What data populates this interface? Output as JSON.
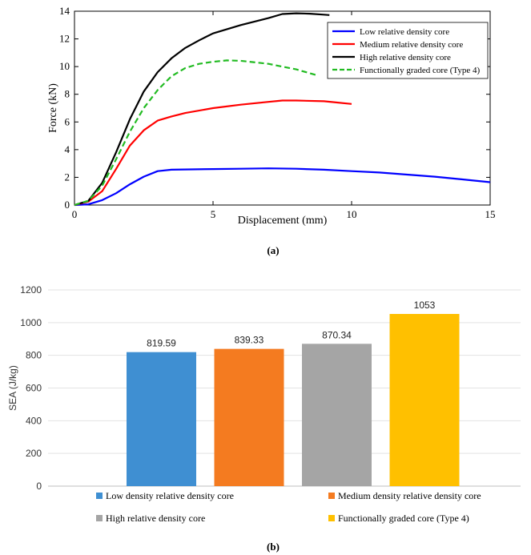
{
  "chart_data": [
    {
      "type": "line",
      "title": "",
      "xlabel": "Displacement (mm)",
      "ylabel": "Force (kN)",
      "xlim": [
        0,
        15
      ],
      "ylim": [
        0,
        14
      ],
      "xticks": [
        "0",
        "5",
        "10",
        "15"
      ],
      "yticks": [
        "0",
        "2",
        "4",
        "6",
        "8",
        "10",
        "12",
        "14"
      ],
      "legend_position": "top-right",
      "caption": "(a)",
      "series": [
        {
          "name": "Low relative density core",
          "color": "#0000ff",
          "dash": false,
          "points": [
            [
              0,
              0
            ],
            [
              0.5,
              0.05
            ],
            [
              1.0,
              0.35
            ],
            [
              1.5,
              0.85
            ],
            [
              2.0,
              1.5
            ],
            [
              2.5,
              2.05
            ],
            [
              3.0,
              2.45
            ],
            [
              3.5,
              2.55
            ],
            [
              5,
              2.6
            ],
            [
              6,
              2.62
            ],
            [
              7,
              2.65
            ],
            [
              8,
              2.62
            ],
            [
              9,
              2.55
            ],
            [
              10,
              2.45
            ],
            [
              11,
              2.35
            ],
            [
              12,
              2.2
            ],
            [
              13,
              2.05
            ],
            [
              14,
              1.85
            ],
            [
              15,
              1.65
            ]
          ]
        },
        {
          "name": "Medium relative density core",
          "color": "#ff0000",
          "dash": false,
          "points": [
            [
              0,
              0
            ],
            [
              0.5,
              0.25
            ],
            [
              1.0,
              1.0
            ],
            [
              1.5,
              2.6
            ],
            [
              2.0,
              4.3
            ],
            [
              2.5,
              5.4
            ],
            [
              3.0,
              6.1
            ],
            [
              3.5,
              6.4
            ],
            [
              4.0,
              6.65
            ],
            [
              5.0,
              7.0
            ],
            [
              6.0,
              7.25
            ],
            [
              7.0,
              7.45
            ],
            [
              7.5,
              7.55
            ],
            [
              8.0,
              7.55
            ],
            [
              9.0,
              7.5
            ],
            [
              10.0,
              7.3
            ]
          ]
        },
        {
          "name": "High relative density core",
          "color": "#000000",
          "dash": false,
          "points": [
            [
              0,
              0
            ],
            [
              0.5,
              0.3
            ],
            [
              1.0,
              1.6
            ],
            [
              1.5,
              3.8
            ],
            [
              2.0,
              6.2
            ],
            [
              2.5,
              8.2
            ],
            [
              3.0,
              9.6
            ],
            [
              3.5,
              10.6
            ],
            [
              4.0,
              11.35
            ],
            [
              4.5,
              11.9
            ],
            [
              5.0,
              12.4
            ],
            [
              6.0,
              13.0
            ],
            [
              7.0,
              13.5
            ],
            [
              7.5,
              13.8
            ],
            [
              8.0,
              13.85
            ],
            [
              8.5,
              13.82
            ],
            [
              9.0,
              13.75
            ],
            [
              9.2,
              13.72
            ]
          ]
        },
        {
          "name": "Functionally graded core (Type 4)",
          "color": "#22bb22",
          "dash": true,
          "points": [
            [
              0,
              0
            ],
            [
              0.5,
              0.3
            ],
            [
              1.0,
              1.4
            ],
            [
              1.5,
              3.3
            ],
            [
              2.0,
              5.3
            ],
            [
              2.5,
              7.0
            ],
            [
              3.0,
              8.3
            ],
            [
              3.5,
              9.3
            ],
            [
              4.0,
              9.9
            ],
            [
              4.5,
              10.2
            ],
            [
              5.0,
              10.35
            ],
            [
              5.5,
              10.45
            ],
            [
              6.0,
              10.42
            ],
            [
              7.0,
              10.2
            ],
            [
              8.0,
              9.8
            ],
            [
              8.7,
              9.4
            ]
          ]
        }
      ]
    },
    {
      "type": "bar",
      "title": "",
      "xlabel": "",
      "ylabel": "SEA (J/kg)",
      "ylim": [
        0,
        1200
      ],
      "yticks": [
        "0",
        "200",
        "400",
        "600",
        "800",
        "1000",
        "1200"
      ],
      "legend_position": "bottom",
      "caption": "(b)",
      "series": [
        {
          "name": "Low density relative density core",
          "value": 819.59,
          "label": "819.59",
          "color": "#3f8fd2"
        },
        {
          "name": "Medium density relative density core",
          "value": 839.33,
          "label": "839.33",
          "color": "#f47b20"
        },
        {
          "name": "High  relative density core",
          "value": 870.34,
          "label": "870.34",
          "color": "#a5a5a5"
        },
        {
          "name": "Functionally graded core (Type 4)",
          "value": 1053,
          "label": "1053",
          "color": "#ffc000"
        }
      ]
    }
  ]
}
